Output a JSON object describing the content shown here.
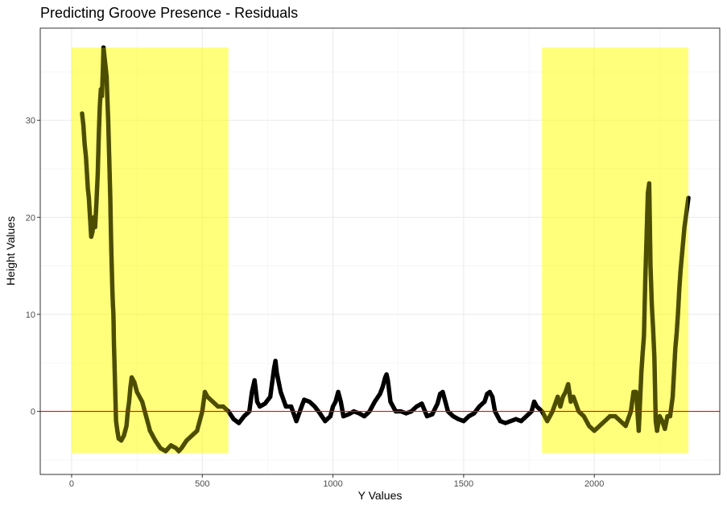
{
  "chart_data": {
    "type": "scatter",
    "title": "Predicting Groove Presence - Residuals",
    "xlabel": "Y Values",
    "ylabel": "Height Values",
    "xlim": [
      -120,
      2480
    ],
    "ylim": [
      -6.5,
      39.5
    ],
    "x_ticks": [
      0,
      500,
      1000,
      1500,
      2000
    ],
    "y_ticks": [
      0,
      10,
      20,
      30
    ],
    "grid": true,
    "legend": "none",
    "reference_line": {
      "y": 0,
      "color": "#ff0000"
    },
    "highlight_regions": [
      {
        "x": [
          0,
          600
        ],
        "y": [
          -4.3,
          37.5
        ],
        "color": "#ffff00",
        "opacity": 0.3
      },
      {
        "x": [
          1800,
          2360
        ],
        "y": [
          -4.3,
          37.5
        ],
        "color": "#ffff00",
        "opacity": 0.3
      }
    ],
    "point_color": "#000000",
    "series": [
      {
        "values": [
          [
            40,
            30.7
          ],
          [
            45,
            29.5
          ],
          [
            50,
            27.5
          ],
          [
            55,
            26.2
          ],
          [
            62,
            23.0
          ],
          [
            66,
            22.0
          ],
          [
            75,
            18.0
          ],
          [
            80,
            18.5
          ],
          [
            85,
            20.0
          ],
          [
            90,
            19.0
          ],
          [
            95,
            21.5
          ],
          [
            100,
            24.5
          ],
          [
            104,
            28.5
          ],
          [
            108,
            31.5
          ],
          [
            112,
            33.2
          ],
          [
            116,
            32.5
          ],
          [
            120,
            35.5
          ],
          [
            122,
            37.5
          ],
          [
            126,
            36.5
          ],
          [
            130,
            35.5
          ],
          [
            134,
            34.5
          ],
          [
            136,
            32.8
          ],
          [
            140,
            30.0
          ],
          [
            142,
            28.0
          ],
          [
            144,
            26.0
          ],
          [
            146,
            24.0
          ],
          [
            148,
            22.0
          ],
          [
            150,
            19.0
          ],
          [
            152,
            16.5
          ],
          [
            154,
            14.5
          ],
          [
            156,
            12.5
          ],
          [
            158,
            11.0
          ],
          [
            160,
            10.0
          ],
          [
            162,
            6.9
          ],
          [
            164,
            5.0
          ],
          [
            166,
            3.0
          ],
          [
            168,
            1.0
          ],
          [
            170,
            -1.0
          ],
          [
            175,
            -2.0
          ],
          [
            180,
            -2.8
          ],
          [
            190,
            -3.0
          ],
          [
            200,
            -2.5
          ],
          [
            210,
            -1.5
          ],
          [
            215,
            0.0
          ],
          [
            220,
            1.0
          ],
          [
            225,
            2.5
          ],
          [
            230,
            3.5
          ],
          [
            240,
            3.0
          ],
          [
            250,
            2.0
          ],
          [
            260,
            1.5
          ],
          [
            270,
            1.0
          ],
          [
            280,
            0.0
          ],
          [
            290,
            -1.0
          ],
          [
            300,
            -2.0
          ],
          [
            320,
            -3.0
          ],
          [
            340,
            -3.8
          ],
          [
            360,
            -4.1
          ],
          [
            380,
            -3.5
          ],
          [
            400,
            -3.8
          ],
          [
            410,
            -4.1
          ],
          [
            420,
            -3.8
          ],
          [
            440,
            -3.0
          ],
          [
            460,
            -2.5
          ],
          [
            480,
            -2.0
          ],
          [
            490,
            -1.0
          ],
          [
            500,
            0.0
          ],
          [
            505,
            1.0
          ],
          [
            510,
            2.0
          ],
          [
            520,
            1.5
          ],
          [
            540,
            1.0
          ],
          [
            560,
            0.5
          ],
          [
            580,
            0.5
          ],
          [
            600,
            0.0
          ],
          [
            620,
            -0.8
          ],
          [
            640,
            -1.2
          ],
          [
            660,
            -0.5
          ],
          [
            680,
            0.0
          ],
          [
            690,
            2.0
          ],
          [
            700,
            3.2
          ],
          [
            710,
            1.0
          ],
          [
            720,
            0.5
          ],
          [
            740,
            0.8
          ],
          [
            760,
            1.5
          ],
          [
            770,
            3.5
          ],
          [
            775,
            4.5
          ],
          [
            780,
            5.2
          ],
          [
            785,
            4.0
          ],
          [
            800,
            2.0
          ],
          [
            820,
            0.5
          ],
          [
            840,
            0.5
          ],
          [
            860,
            -1.0
          ],
          [
            880,
            0.5
          ],
          [
            890,
            1.2
          ],
          [
            910,
            1.0
          ],
          [
            930,
            0.5
          ],
          [
            950,
            -0.2
          ],
          [
            970,
            -1.0
          ],
          [
            990,
            -0.5
          ],
          [
            1000,
            0.5
          ],
          [
            1010,
            1.0
          ],
          [
            1020,
            2.0
          ],
          [
            1030,
            1.0
          ],
          [
            1040,
            -0.5
          ],
          [
            1060,
            -0.3
          ],
          [
            1080,
            0.0
          ],
          [
            1100,
            -0.2
          ],
          [
            1120,
            -0.5
          ],
          [
            1140,
            0.0
          ],
          [
            1160,
            1.0
          ],
          [
            1180,
            1.8
          ],
          [
            1190,
            2.5
          ],
          [
            1200,
            3.5
          ],
          [
            1205,
            3.8
          ],
          [
            1210,
            3.2
          ],
          [
            1220,
            1.0
          ],
          [
            1240,
            0.0
          ],
          [
            1260,
            0.0
          ],
          [
            1280,
            -0.2
          ],
          [
            1300,
            0.0
          ],
          [
            1320,
            0.5
          ],
          [
            1340,
            0.8
          ],
          [
            1360,
            -0.5
          ],
          [
            1380,
            -0.3
          ],
          [
            1400,
            0.8
          ],
          [
            1410,
            1.8
          ],
          [
            1420,
            2.0
          ],
          [
            1440,
            0.0
          ],
          [
            1460,
            -0.5
          ],
          [
            1480,
            -0.8
          ],
          [
            1500,
            -1.0
          ],
          [
            1520,
            -0.5
          ],
          [
            1540,
            -0.2
          ],
          [
            1560,
            0.5
          ],
          [
            1580,
            1.0
          ],
          [
            1590,
            1.8
          ],
          [
            1600,
            2.0
          ],
          [
            1610,
            1.5
          ],
          [
            1620,
            0.0
          ],
          [
            1640,
            -1.0
          ],
          [
            1660,
            -1.2
          ],
          [
            1680,
            -1.0
          ],
          [
            1700,
            -0.8
          ],
          [
            1720,
            -1.0
          ],
          [
            1740,
            -0.5
          ],
          [
            1760,
            0.0
          ],
          [
            1770,
            1.0
          ],
          [
            1780,
            0.5
          ],
          [
            1800,
            0.0
          ],
          [
            1820,
            -1.0
          ],
          [
            1840,
            0.0
          ],
          [
            1860,
            1.5
          ],
          [
            1870,
            0.5
          ],
          [
            1880,
            1.5
          ],
          [
            1890,
            2.0
          ],
          [
            1900,
            2.8
          ],
          [
            1910,
            1.0
          ],
          [
            1920,
            1.5
          ],
          [
            1940,
            0.0
          ],
          [
            1960,
            -0.5
          ],
          [
            1980,
            -1.5
          ],
          [
            2000,
            -2.0
          ],
          [
            2020,
            -1.5
          ],
          [
            2040,
            -1.0
          ],
          [
            2060,
            -0.5
          ],
          [
            2080,
            -0.5
          ],
          [
            2100,
            -1.0
          ],
          [
            2120,
            -1.5
          ],
          [
            2140,
            0.0
          ],
          [
            2150,
            2.0
          ],
          [
            2160,
            2.0
          ],
          [
            2165,
            0.0
          ],
          [
            2170,
            -2.0
          ],
          [
            2180,
            4.0
          ],
          [
            2185,
            6.0
          ],
          [
            2190,
            7.8
          ],
          [
            2195,
            13.5
          ],
          [
            2200,
            18.0
          ],
          [
            2205,
            22.5
          ],
          [
            2210,
            23.5
          ],
          [
            2215,
            15.0
          ],
          [
            2220,
            11.0
          ],
          [
            2225,
            8.5
          ],
          [
            2230,
            5.5
          ],
          [
            2235,
            -1.0
          ],
          [
            2240,
            -2.0
          ],
          [
            2250,
            -0.5
          ],
          [
            2260,
            -1.0
          ],
          [
            2270,
            -1.8
          ],
          [
            2280,
            -0.5
          ],
          [
            2290,
            -0.5
          ],
          [
            2300,
            1.5
          ],
          [
            2310,
            6.5
          ],
          [
            2315,
            8.0
          ],
          [
            2320,
            10.0
          ],
          [
            2325,
            12.5
          ],
          [
            2330,
            14.5
          ],
          [
            2335,
            16.0
          ],
          [
            2340,
            17.5
          ],
          [
            2345,
            19.0
          ],
          [
            2350,
            20.0
          ],
          [
            2355,
            21.0
          ],
          [
            2360,
            22.0
          ]
        ]
      }
    ]
  }
}
